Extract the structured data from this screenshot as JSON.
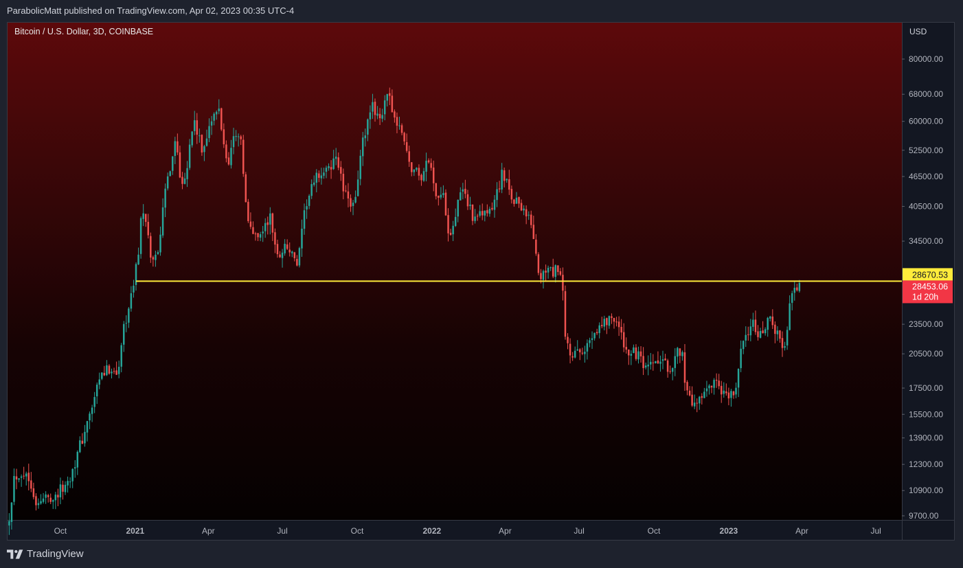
{
  "header": {
    "published_text": "ParabolicMatt published on TradingView.com, Apr 02, 2023 00:35 UTC-4"
  },
  "footer": {
    "brand_name": "TradingView",
    "logo_icon": "tradingview-logo-icon"
  },
  "chart_data": {
    "type": "candlestick",
    "title": "Bitcoin / U.S. Dollar, 3D, COINBASE",
    "symbol": "Bitcoin / U.S. Dollar",
    "interval": "3D",
    "exchange": "COINBASE",
    "currency_label": "USD",
    "scale": "log",
    "y_ticks": [
      80000,
      68000,
      60000,
      52500,
      46500,
      40500,
      34500,
      23500,
      20500,
      17500,
      15500,
      13900,
      12300,
      10900,
      9700
    ],
    "y_tick_labels": [
      "80000.00",
      "68000.00",
      "60000.00",
      "52500.00",
      "46500.00",
      "40500.00",
      "34500.00",
      "23500.00",
      "20500.00",
      "17500.00",
      "15500.00",
      "13900.00",
      "12300.00",
      "10900.00",
      "9700.00"
    ],
    "x_ticks": [
      {
        "date": "2020-10-01",
        "label": "Oct",
        "bold": false
      },
      {
        "date": "2021-01-01",
        "label": "2021",
        "bold": true
      },
      {
        "date": "2021-04-01",
        "label": "Apr",
        "bold": false
      },
      {
        "date": "2021-07-01",
        "label": "Jul",
        "bold": false
      },
      {
        "date": "2021-10-01",
        "label": "Oct",
        "bold": false
      },
      {
        "date": "2022-01-01",
        "label": "2022",
        "bold": true
      },
      {
        "date": "2022-04-01",
        "label": "Apr",
        "bold": false
      },
      {
        "date": "2022-07-01",
        "label": "Jul",
        "bold": false
      },
      {
        "date": "2022-10-01",
        "label": "Oct",
        "bold": false
      },
      {
        "date": "2023-01-01",
        "label": "2023",
        "bold": true
      },
      {
        "date": "2023-04-01",
        "label": "Apr",
        "bold": false
      },
      {
        "date": "2023-07-01",
        "label": "Jul",
        "bold": false
      }
    ],
    "x_range": [
      "2020-07-28",
      "2023-08-02"
    ],
    "horizontal_line": {
      "value": 28670.53,
      "label": "28670.53",
      "color": "#ffeb3b",
      "start_date": "2021-01-02"
    },
    "last_price": {
      "value": 28453.06,
      "label": "28453.06",
      "countdown": "1d 20h",
      "color": "#f23645"
    },
    "colors": {
      "up": "#26a69a",
      "down": "#ef5350",
      "line": "#ffeb3b"
    },
    "close_path": [
      [
        "2020-07-30",
        9700
      ],
      [
        "2020-08-05",
        11600
      ],
      [
        "2020-08-15",
        11900
      ],
      [
        "2020-08-20",
        11700
      ],
      [
        "2020-08-26",
        11300
      ],
      [
        "2020-09-03",
        10100
      ],
      [
        "2020-09-12",
        10600
      ],
      [
        "2020-09-24",
        10600
      ],
      [
        "2020-10-10",
        11300
      ],
      [
        "2020-10-22",
        12900
      ],
      [
        "2020-11-05",
        15200
      ],
      [
        "2020-11-20",
        18500
      ],
      [
        "2020-12-01",
        19200
      ],
      [
        "2020-12-12",
        19000
      ],
      [
        "2020-12-17",
        23000
      ],
      [
        "2020-12-27",
        26500
      ],
      [
        "2021-01-05",
        33000
      ],
      [
        "2021-01-09",
        40000
      ],
      [
        "2021-01-14",
        37000
      ],
      [
        "2021-01-22",
        31000
      ],
      [
        "2021-01-30",
        34000
      ],
      [
        "2021-02-08",
        44500
      ],
      [
        "2021-02-20",
        56000
      ],
      [
        "2021-02-26",
        45500
      ],
      [
        "2021-03-05",
        48000
      ],
      [
        "2021-03-14",
        60500
      ],
      [
        "2021-03-25",
        51500
      ],
      [
        "2021-04-01",
        59000
      ],
      [
        "2021-04-14",
        63000
      ],
      [
        "2021-04-24",
        49000
      ],
      [
        "2021-05-04",
        57000
      ],
      [
        "2021-05-10",
        56500
      ],
      [
        "2021-05-13",
        49500
      ],
      [
        "2021-05-19",
        37500
      ],
      [
        "2021-05-28",
        35500
      ],
      [
        "2021-06-06",
        36000
      ],
      [
        "2021-06-16",
        38500
      ],
      [
        "2021-06-25",
        32000
      ],
      [
        "2021-07-05",
        34000
      ],
      [
        "2021-07-20",
        30800
      ],
      [
        "2021-07-30",
        41000
      ],
      [
        "2021-08-14",
        47000
      ],
      [
        "2021-08-26",
        47500
      ],
      [
        "2021-09-06",
        51500
      ],
      [
        "2021-09-12",
        45000
      ],
      [
        "2021-09-21",
        40500
      ],
      [
        "2021-09-29",
        43000
      ],
      [
        "2021-10-08",
        54500
      ],
      [
        "2021-10-20",
        64000
      ],
      [
        "2021-10-30",
        61500
      ],
      [
        "2021-11-09",
        67500
      ],
      [
        "2021-11-20",
        58000
      ],
      [
        "2021-11-27",
        56500
      ],
      [
        "2021-12-04",
        49000
      ],
      [
        "2021-12-20",
        46500
      ],
      [
        "2021-12-28",
        50500
      ],
      [
        "2022-01-05",
        43500
      ],
      [
        "2022-01-16",
        42000
      ],
      [
        "2022-01-22",
        35500
      ],
      [
        "2022-02-08",
        44000
      ],
      [
        "2022-02-24",
        37500
      ],
      [
        "2022-03-05",
        39500
      ],
      [
        "2022-03-14",
        39000
      ],
      [
        "2022-03-28",
        47000
      ],
      [
        "2022-04-09",
        42500
      ],
      [
        "2022-04-25",
        40000
      ],
      [
        "2022-05-05",
        36500
      ],
      [
        "2022-05-12",
        29000
      ],
      [
        "2022-05-22",
        30000
      ],
      [
        "2022-06-05",
        30000
      ],
      [
        "2022-06-10",
        28500
      ],
      [
        "2022-06-14",
        22000
      ],
      [
        "2022-06-20",
        20500
      ],
      [
        "2022-07-05",
        20300
      ],
      [
        "2022-07-20",
        23000
      ],
      [
        "2022-08-14",
        24500
      ],
      [
        "2022-08-26",
        21000
      ],
      [
        "2022-09-13",
        20200
      ],
      [
        "2022-09-20",
        18800
      ],
      [
        "2022-10-05",
        19800
      ],
      [
        "2022-10-20",
        19200
      ],
      [
        "2022-11-05",
        21300
      ],
      [
        "2022-11-09",
        17000
      ],
      [
        "2022-11-21",
        16000
      ],
      [
        "2022-12-14",
        17800
      ],
      [
        "2022-12-31",
        16600
      ],
      [
        "2023-01-09",
        17300
      ],
      [
        "2023-01-20",
        22500
      ],
      [
        "2023-01-30",
        23500
      ],
      [
        "2023-02-12",
        21900
      ],
      [
        "2023-02-21",
        24500
      ],
      [
        "2023-03-03",
        22300
      ],
      [
        "2023-03-12",
        20800
      ],
      [
        "2023-03-15",
        24700
      ],
      [
        "2023-03-21",
        28200
      ],
      [
        "2023-03-27",
        27100
      ],
      [
        "2023-03-31",
        28450
      ]
    ]
  }
}
